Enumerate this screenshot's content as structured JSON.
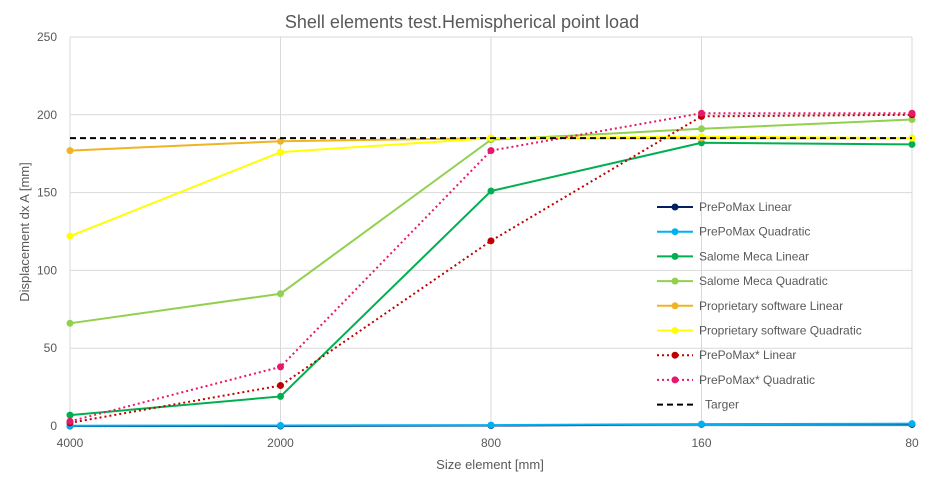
{
  "chart_data": {
    "type": "line",
    "title": "Shell elements test.Hemispherical point load",
    "xlabel": "Size element [mm]",
    "ylabel": "Displacement dx A [mm]",
    "categories": [
      "4000",
      "2000",
      "800",
      "160",
      "80"
    ],
    "ylim": [
      0,
      250
    ],
    "yticks": [
      "0",
      "50",
      "100",
      "150",
      "200",
      "250"
    ],
    "grid": true,
    "legend_position": "right",
    "series": [
      {
        "name": "PrePoMax Linear",
        "color": "#002060",
        "style": "solid",
        "marker": true,
        "values": [
          0,
          0,
          0.3,
          1,
          1
        ]
      },
      {
        "name": "PrePoMax Quadratic",
        "color": "#00b0f0",
        "style": "solid",
        "marker": true,
        "values": [
          0.2,
          0.3,
          0.6,
          1.2,
          1.5
        ]
      },
      {
        "name": "Salome Meca Linear",
        "color": "#00b050",
        "style": "solid",
        "marker": true,
        "values": [
          7,
          19,
          151,
          182,
          181
        ]
      },
      {
        "name": "Salome Meca Quadratic",
        "color": "#92d050",
        "style": "solid",
        "marker": true,
        "values": [
          66,
          85,
          184,
          191,
          197
        ]
      },
      {
        "name": "Proprietary software Linear",
        "color": "#f0b323",
        "style": "solid",
        "marker": true,
        "values": [
          177,
          183,
          185,
          185,
          185
        ]
      },
      {
        "name": "Proprietary software Quadratic",
        "color": "#ffff00",
        "style": "solid",
        "marker": true,
        "values": [
          122,
          176,
          185,
          186,
          185
        ]
      },
      {
        "name": "PrePoMax* Linear",
        "color": "#c00000",
        "style": "dotted",
        "marker": true,
        "values": [
          2,
          26,
          119,
          199,
          200
        ]
      },
      {
        "name": "PrePoMax* Quadratic",
        "color": "#e8176d",
        "style": "dotted",
        "marker": true,
        "values": [
          3,
          38,
          177,
          201,
          201
        ]
      },
      {
        "name": "Targer",
        "color": "#000000",
        "style": "dashed",
        "marker": false,
        "values": [
          185,
          185,
          185,
          185,
          185
        ]
      }
    ]
  }
}
